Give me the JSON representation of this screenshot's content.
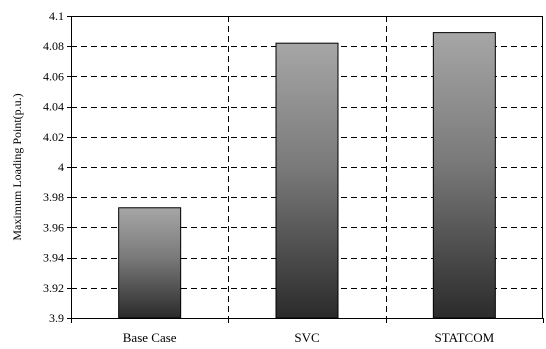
{
  "chart_data": {
    "type": "bar",
    "categories": [
      "Base Case",
      "SVC",
      "STATCOM"
    ],
    "values": [
      3.973,
      4.082,
      4.089
    ],
    "ylabel": "Maximum Loading Point(p.u.)",
    "ylim": [
      3.9,
      4.1
    ],
    "yticks": [
      "3.9",
      "3.92",
      "3.94",
      "3.96",
      "3.98",
      "4",
      "4.02",
      "4.04",
      "4.06",
      "4.08",
      "4.1"
    ],
    "grid": true,
    "colors": {
      "bar_top": "#a6a6a6",
      "bar_bottom": "#2b2b2b",
      "grid": "#000000",
      "frame": "#000000"
    }
  }
}
